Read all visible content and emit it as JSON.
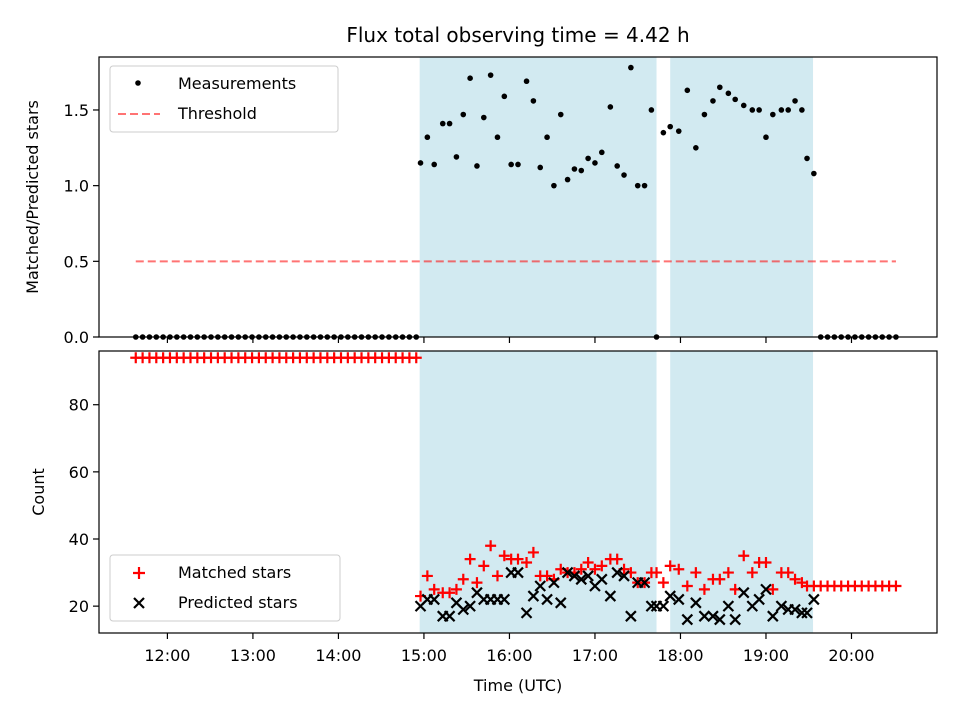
{
  "chart_data": [
    {
      "type": "scatter",
      "title": "Flux total observing time = 4.42 h",
      "xlabel": "",
      "ylabel": "Matched/Predicted stars",
      "xlim": [
        11.2,
        21.0
      ],
      "ylim": [
        0.0,
        1.85
      ],
      "yticks": [
        0.0,
        0.5,
        1.0,
        1.5
      ],
      "ytick_labels": [
        "0.0",
        "0.5",
        "1.0",
        "1.5"
      ],
      "grid": false,
      "legend_position": "upper-left",
      "shaded_intervals": [
        [
          14.95,
          17.72
        ],
        [
          17.88,
          19.55
        ]
      ],
      "colors": {
        "shade": "#add8e6",
        "measurement": "#000000",
        "threshold": "#ff0000"
      },
      "series": [
        {
          "name": "Measurements",
          "kind": "scatter",
          "x": [
            11.63,
            11.71,
            11.79,
            11.87,
            11.95,
            12.03,
            12.11,
            12.19,
            12.27,
            12.35,
            12.43,
            12.51,
            12.59,
            12.67,
            12.75,
            12.83,
            12.91,
            12.99,
            13.07,
            13.15,
            13.23,
            13.31,
            13.39,
            13.47,
            13.55,
            13.63,
            13.71,
            13.79,
            13.87,
            13.95,
            14.03,
            14.11,
            14.19,
            14.27,
            14.35,
            14.43,
            14.51,
            14.59,
            14.67,
            14.75,
            14.83,
            14.91,
            14.96,
            15.04,
            15.12,
            15.22,
            15.3,
            15.38,
            15.46,
            15.54,
            15.62,
            15.7,
            15.78,
            15.86,
            15.94,
            16.02,
            16.1,
            16.2,
            16.28,
            16.36,
            16.44,
            16.52,
            16.6,
            16.68,
            16.76,
            16.84,
            16.92,
            17.0,
            17.08,
            17.18,
            17.26,
            17.34,
            17.42,
            17.5,
            17.58,
            17.66,
            17.72,
            17.8,
            17.88,
            17.98,
            18.08,
            18.18,
            18.28,
            18.38,
            18.46,
            18.56,
            18.64,
            18.74,
            18.84,
            18.92,
            19.0,
            19.08,
            19.18,
            19.26,
            19.34,
            19.42,
            19.48,
            19.56,
            19.64,
            19.72,
            19.8,
            19.88,
            19.96,
            20.04,
            20.12,
            20.2,
            20.28,
            20.36,
            20.44,
            20.52
          ],
          "y": [
            0,
            0,
            0,
            0,
            0,
            0,
            0,
            0,
            0,
            0,
            0,
            0,
            0,
            0,
            0,
            0,
            0,
            0,
            0,
            0,
            0,
            0,
            0,
            0,
            0,
            0,
            0,
            0,
            0,
            0,
            0,
            0,
            0,
            0,
            0,
            0,
            0,
            0,
            0,
            0,
            0,
            0,
            1.15,
            1.32,
            1.14,
            1.41,
            1.41,
            1.19,
            1.47,
            1.71,
            1.13,
            1.45,
            1.73,
            1.32,
            1.59,
            1.14,
            1.14,
            1.69,
            1.56,
            1.12,
            1.32,
            1.0,
            1.47,
            1.04,
            1.11,
            1.1,
            1.18,
            1.15,
            1.22,
            1.52,
            1.13,
            1.07,
            1.78,
            1.0,
            1.0,
            1.5,
            0.0,
            1.35,
            1.39,
            1.36,
            1.63,
            1.25,
            1.47,
            1.56,
            1.65,
            1.61,
            1.57,
            1.53,
            1.5,
            1.5,
            1.32,
            1.47,
            1.5,
            1.5,
            1.56,
            1.5,
            1.18,
            1.08,
            0,
            0,
            0,
            0,
            0,
            0,
            0,
            0,
            0,
            0,
            0,
            0
          ]
        },
        {
          "name": "Threshold",
          "kind": "dashed-line",
          "x": [
            11.63,
            20.52
          ],
          "y": [
            0.5,
            0.5
          ]
        }
      ]
    },
    {
      "type": "scatter",
      "title": "",
      "xlabel": "Time (UTC)",
      "ylabel": "Count",
      "xlim": [
        11.2,
        21.0
      ],
      "ylim": [
        12,
        96
      ],
      "yticks": [
        20,
        40,
        60,
        80
      ],
      "ytick_labels": [
        "20",
        "40",
        "60",
        "80"
      ],
      "xticks": [
        12,
        13,
        14,
        15,
        16,
        17,
        18,
        19,
        20
      ],
      "xtick_labels": [
        "12:00",
        "13:00",
        "14:00",
        "15:00",
        "16:00",
        "17:00",
        "18:00",
        "19:00",
        "20:00"
      ],
      "grid": false,
      "legend_position": "lower-left",
      "shaded_intervals": [
        [
          14.95,
          17.72
        ],
        [
          17.88,
          19.55
        ]
      ],
      "colors": {
        "shade": "#add8e6",
        "matched": "#ff0000",
        "predicted": "#000000"
      },
      "series": [
        {
          "name": "Matched stars",
          "kind": "plus",
          "x": [
            11.63,
            11.71,
            11.79,
            11.87,
            11.95,
            12.03,
            12.11,
            12.19,
            12.27,
            12.35,
            12.43,
            12.51,
            12.59,
            12.67,
            12.75,
            12.83,
            12.91,
            12.99,
            13.07,
            13.15,
            13.23,
            13.31,
            13.39,
            13.47,
            13.55,
            13.63,
            13.71,
            13.79,
            13.87,
            13.95,
            14.03,
            14.11,
            14.19,
            14.27,
            14.35,
            14.43,
            14.51,
            14.59,
            14.67,
            14.75,
            14.83,
            14.91,
            14.96,
            15.04,
            15.12,
            15.22,
            15.3,
            15.38,
            15.46,
            15.54,
            15.62,
            15.7,
            15.78,
            15.86,
            15.94,
            16.02,
            16.1,
            16.2,
            16.28,
            16.36,
            16.44,
            16.52,
            16.6,
            16.68,
            16.76,
            16.84,
            16.92,
            17.0,
            17.08,
            17.18,
            17.26,
            17.34,
            17.42,
            17.5,
            17.58,
            17.66,
            17.72,
            17.8,
            17.88,
            17.98,
            18.08,
            18.18,
            18.28,
            18.38,
            18.46,
            18.56,
            18.64,
            18.74,
            18.84,
            18.92,
            19.0,
            19.08,
            19.18,
            19.26,
            19.34,
            19.42,
            19.48,
            19.56,
            19.64,
            19.72,
            19.8,
            19.88,
            19.96,
            20.04,
            20.12,
            20.2,
            20.28,
            20.36,
            20.44,
            20.52
          ],
          "y": [
            94,
            94,
            94,
            94,
            94,
            94,
            94,
            94,
            94,
            94,
            94,
            94,
            94,
            94,
            94,
            94,
            94,
            94,
            94,
            94,
            94,
            94,
            94,
            94,
            94,
            94,
            94,
            94,
            94,
            94,
            94,
            94,
            94,
            94,
            94,
            94,
            94,
            94,
            94,
            94,
            94,
            94,
            23,
            29,
            25,
            24,
            24,
            25,
            28,
            34,
            27,
            32,
            38,
            29,
            35,
            34,
            34,
            33,
            36,
            29,
            29,
            28,
            31,
            30,
            30,
            31,
            33,
            31,
            32,
            34,
            34,
            31,
            30,
            27,
            27,
            30,
            30,
            27,
            32,
            31,
            26,
            30,
            25,
            28,
            28,
            30,
            25,
            35,
            30,
            33,
            33,
            25,
            30,
            30,
            28,
            27,
            26,
            26,
            26,
            26,
            26,
            26,
            26,
            26,
            26,
            26,
            26,
            26,
            26,
            26
          ]
        },
        {
          "name": "Predicted stars",
          "kind": "x",
          "x": [
            14.96,
            15.04,
            15.12,
            15.22,
            15.3,
            15.38,
            15.46,
            15.54,
            15.62,
            15.7,
            15.78,
            15.86,
            15.94,
            16.02,
            16.1,
            16.2,
            16.28,
            16.36,
            16.44,
            16.52,
            16.6,
            16.68,
            16.76,
            16.84,
            16.92,
            17.0,
            17.08,
            17.18,
            17.26,
            17.34,
            17.42,
            17.5,
            17.58,
            17.66,
            17.72,
            17.8,
            17.88,
            17.98,
            18.08,
            18.18,
            18.28,
            18.38,
            18.46,
            18.56,
            18.64,
            18.74,
            18.84,
            18.92,
            19.0,
            19.08,
            19.18,
            19.26,
            19.34,
            19.42,
            19.48,
            19.56
          ],
          "y": [
            20,
            22,
            22,
            17,
            17,
            21,
            19,
            20,
            24,
            22,
            22,
            22,
            22,
            30,
            30,
            18,
            23,
            26,
            22,
            27,
            21,
            30,
            29,
            28,
            29,
            26,
            28,
            23,
            30,
            29,
            17,
            27,
            27,
            20,
            20,
            20,
            23,
            22,
            16,
            21,
            17,
            17,
            16,
            20,
            16,
            24,
            20,
            22,
            25,
            17,
            20,
            19,
            19,
            18,
            18,
            22
          ]
        }
      ]
    }
  ]
}
